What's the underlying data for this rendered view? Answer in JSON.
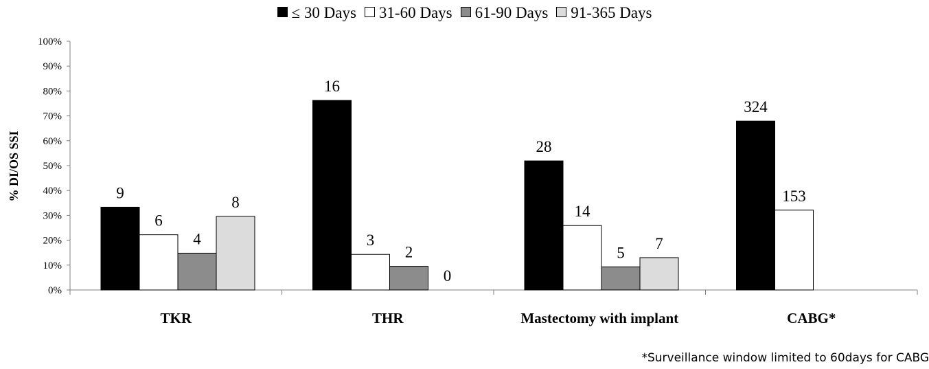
{
  "chart_data": {
    "type": "bar",
    "ylabel": "% DI/OS SSI",
    "xlabel": "",
    "ylim": [
      0,
      100
    ],
    "y_ticks": [
      "0%",
      "10%",
      "20%",
      "30%",
      "40%",
      "50%",
      "60%",
      "70%",
      "80%",
      "90%",
      "100%"
    ],
    "categories": [
      "TKR",
      "THR",
      "Mastectomy with implant",
      "CABG*"
    ],
    "legend_position": "top",
    "grid": false,
    "series": [
      {
        "name": "≤ 30 Days",
        "color": "#000000",
        "values": [
          33.3,
          76.2,
          51.9,
          67.9
        ],
        "labels": [
          "9",
          "16",
          "28",
          "324"
        ]
      },
      {
        "name": "31-60 Days",
        "color": "#ffffff",
        "values": [
          22.2,
          14.3,
          25.9,
          32.1
        ],
        "labels": [
          "6",
          "3",
          "14",
          "153"
        ]
      },
      {
        "name": "61-90 Days",
        "color": "#8c8c8c",
        "values": [
          14.8,
          9.5,
          9.3,
          null
        ],
        "labels": [
          "4",
          "2",
          "5",
          null
        ]
      },
      {
        "name": "91-365 Days",
        "color": "#dcdcdc",
        "values": [
          29.6,
          0,
          13.0,
          null
        ],
        "labels": [
          "8",
          "0",
          "7",
          null
        ]
      }
    ],
    "footnote": "*Surveillance  window limited to 60days for CABG"
  }
}
